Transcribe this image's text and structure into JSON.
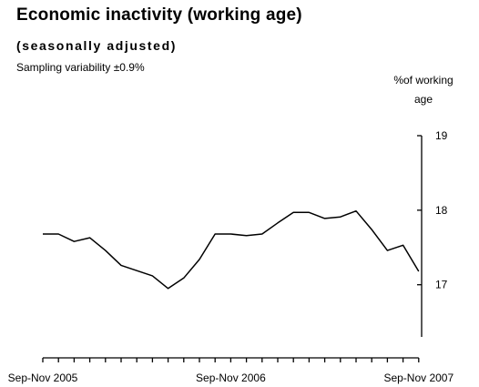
{
  "chart_data": {
    "type": "line",
    "title": "Economic inactivity (working age)",
    "subtitle": "(seasonally adjusted)",
    "note": "Sampling variability ±0.9%",
    "ylabel_line1": "%of working",
    "ylabel_line2": "age",
    "ylim": [
      16.3,
      19
    ],
    "yticks": [
      17,
      18,
      19
    ],
    "x_tick_labels": [
      {
        "index": 0,
        "label": "Sep-Nov 2005"
      },
      {
        "index": 12,
        "label": "Sep-Nov 2006"
      },
      {
        "index": 24,
        "label": "Sep-Nov 2007"
      }
    ],
    "grid": false,
    "axis_position": "right",
    "series": [
      {
        "values": [
          17.68,
          17.68,
          17.58,
          17.63,
          17.46,
          17.26,
          17.19,
          17.12,
          16.95,
          17.09,
          17.34,
          17.68,
          17.68,
          17.66,
          17.68,
          17.83,
          17.97,
          17.97,
          17.89,
          17.91,
          17.99,
          17.74,
          17.46,
          17.53,
          17.18
        ]
      }
    ],
    "colors": {
      "line": "#000000",
      "axis": "#000000"
    }
  }
}
